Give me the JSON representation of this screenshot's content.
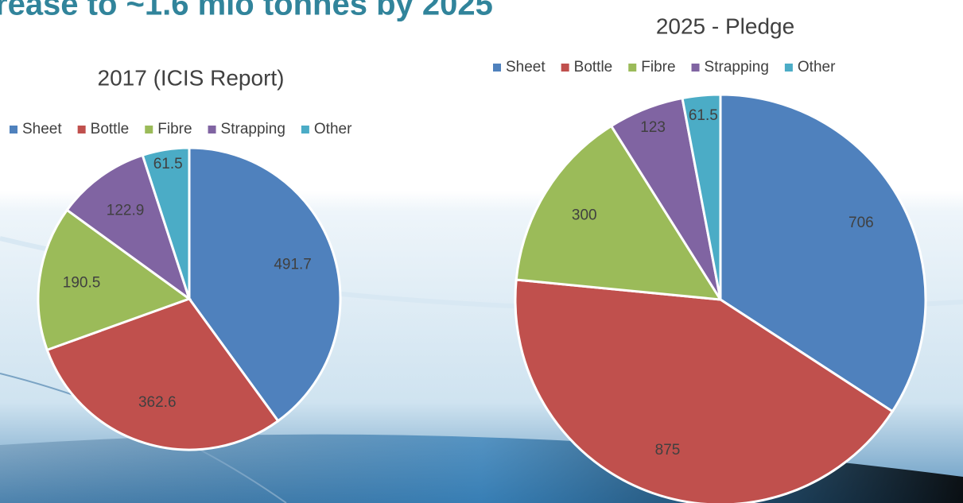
{
  "slide_title": "rease to ~1.6 mio tonnes by 2025",
  "chart_data": [
    {
      "type": "pie",
      "title": "2017 (ICIS Report)",
      "categories": [
        "Sheet",
        "Bottle",
        "Fibre",
        "Strapping",
        "Other"
      ],
      "values": [
        491.7,
        362.6,
        190.5,
        122.9,
        61.5
      ],
      "colors": [
        "#4f81bd",
        "#c0504d",
        "#9bbb59",
        "#8064a2",
        "#4bacc6"
      ]
    },
    {
      "type": "pie",
      "title": "2025 - Pledge",
      "categories": [
        "Sheet",
        "Bottle",
        "Fibre",
        "Strapping",
        "Other"
      ],
      "values": [
        706,
        875,
        300,
        123,
        61.5
      ],
      "colors": [
        "#4f81bd",
        "#c0504d",
        "#9bbb59",
        "#8064a2",
        "#4bacc6"
      ]
    }
  ]
}
